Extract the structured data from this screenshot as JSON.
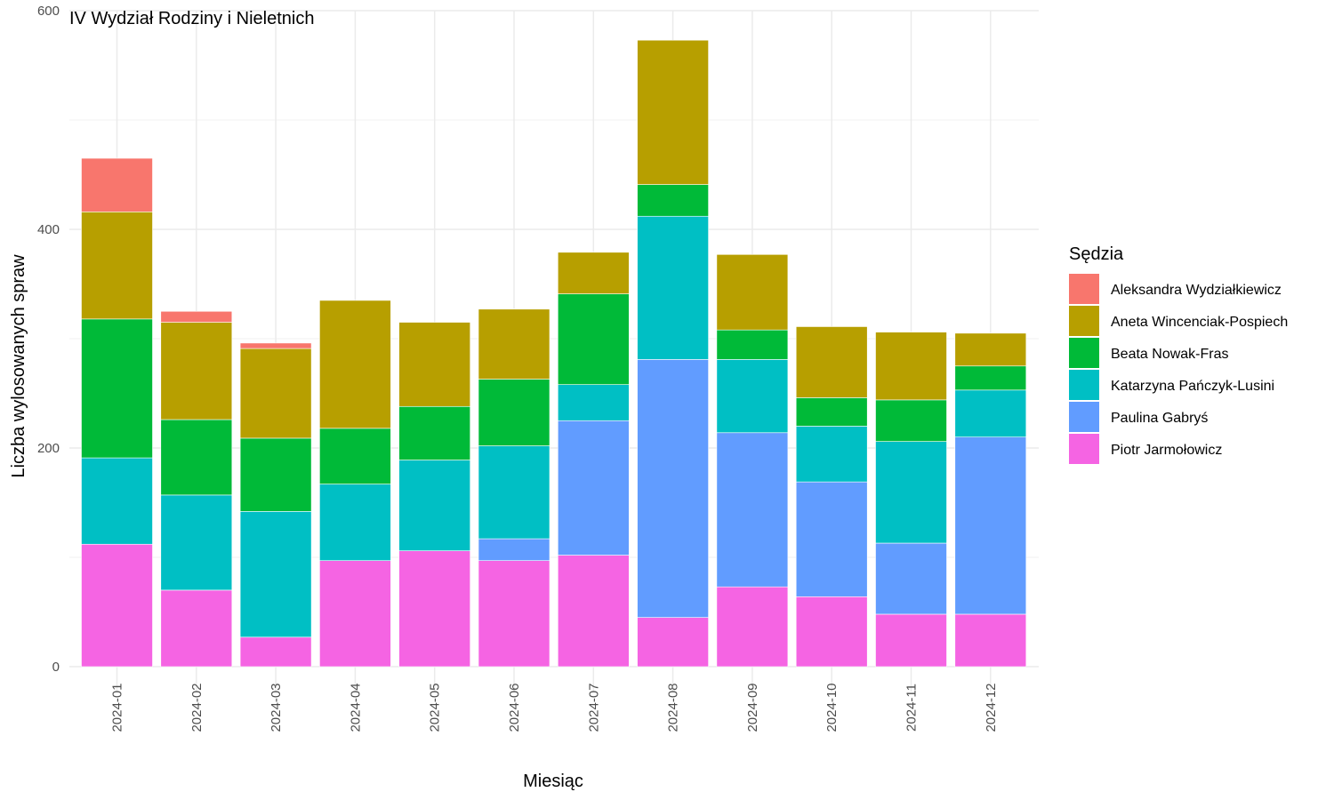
{
  "chart_data": {
    "type": "bar",
    "stacked": true,
    "title": "IV Wydział Rodziny i Nieletnich",
    "xlabel": "Miesiąc",
    "ylabel": "Liczba wylosowanych spraw",
    "ylim": [
      0,
      600
    ],
    "y_ticks": [
      0,
      200,
      400,
      600
    ],
    "grid": true,
    "legend_title": "Sędzia",
    "legend_position": "right",
    "categories": [
      "2024-01",
      "2024-02",
      "2024-03",
      "2024-04",
      "2024-05",
      "2024-06",
      "2024-07",
      "2024-08",
      "2024-09",
      "2024-10",
      "2024-11",
      "2024-12"
    ],
    "series": [
      {
        "name": "Piotr Jarmołowicz",
        "color": "#F564E3",
        "values": [
          112,
          70,
          27,
          97,
          106,
          97,
          102,
          45,
          73,
          64,
          48,
          48
        ]
      },
      {
        "name": "Paulina Gabryś",
        "color": "#619CFF",
        "values": [
          0,
          0,
          0,
          0,
          0,
          20,
          123,
          236,
          141,
          105,
          65,
          162
        ]
      },
      {
        "name": "Katarzyna Pańczyk-Lusini",
        "color": "#00BFC4",
        "values": [
          79,
          87,
          115,
          70,
          83,
          85,
          33,
          131,
          67,
          51,
          93,
          43
        ]
      },
      {
        "name": "Beata Nowak-Fras",
        "color": "#00BA38",
        "values": [
          127,
          69,
          67,
          51,
          49,
          61,
          83,
          29,
          27,
          26,
          38,
          22
        ]
      },
      {
        "name": "Aneta Wincenciak-Pospiech",
        "color": "#B79F00",
        "values": [
          98,
          89,
          82,
          117,
          77,
          64,
          38,
          132,
          69,
          65,
          62,
          30
        ]
      },
      {
        "name": "Aleksandra Wydziałkiewicz",
        "color": "#F8766D",
        "values": [
          49,
          10,
          5,
          0,
          0,
          0,
          0,
          0,
          0,
          0,
          0,
          0
        ]
      }
    ],
    "legend_order": [
      "Aleksandra Wydziałkiewicz",
      "Aneta Wincenciak-Pospiech",
      "Beata Nowak-Fras",
      "Katarzyna Pańczyk-Lusini",
      "Paulina Gabryś",
      "Piotr Jarmołowicz"
    ]
  }
}
